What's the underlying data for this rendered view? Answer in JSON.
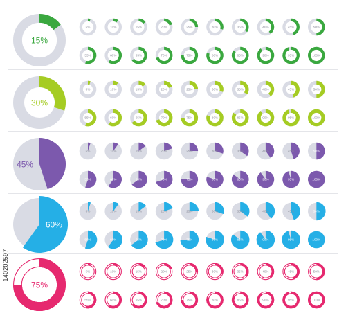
{
  "colors": {
    "track": "#d9dbe4",
    "divider": "#c9cbd3",
    "green": "#3aa83f",
    "lime": "#a5cc23",
    "purple": "#7c59ad",
    "blue": "#25afe6",
    "pink": "#e6296f"
  },
  "watermark_id": "140202597",
  "rows": [
    {
      "style": "ring-thin",
      "color_key": "green",
      "hero": {
        "value": 15,
        "label": "15%"
      },
      "small": [
        {
          "value": 5,
          "label": "5%"
        },
        {
          "value": 10,
          "label": "10%"
        },
        {
          "value": 15,
          "label": "15%"
        },
        {
          "value": 20,
          "label": "20%"
        },
        {
          "value": 25,
          "label": "25%"
        },
        {
          "value": 30,
          "label": "30%"
        },
        {
          "value": 35,
          "label": "35%"
        },
        {
          "value": 40,
          "label": "40%"
        },
        {
          "value": 45,
          "label": "45%"
        },
        {
          "value": 50,
          "label": "50%"
        },
        {
          "value": 55,
          "label": "55%"
        },
        {
          "value": 60,
          "label": "60%"
        },
        {
          "value": 65,
          "label": "65%"
        },
        {
          "value": 70,
          "label": "70%"
        },
        {
          "value": 75,
          "label": "75%"
        },
        {
          "value": 80,
          "label": "80%"
        },
        {
          "value": 85,
          "label": "85%"
        },
        {
          "value": 90,
          "label": "90%"
        },
        {
          "value": 95,
          "label": "95%"
        },
        {
          "value": 100,
          "label": "100%"
        }
      ]
    },
    {
      "style": "ring-thick",
      "color_key": "lime",
      "hero": {
        "value": 30,
        "label": "30%"
      },
      "small": [
        {
          "value": 5,
          "label": "5%"
        },
        {
          "value": 10,
          "label": "10%"
        },
        {
          "value": 15,
          "label": "15%"
        },
        {
          "value": 20,
          "label": "20%"
        },
        {
          "value": 25,
          "label": "25%"
        },
        {
          "value": 30,
          "label": "30%"
        },
        {
          "value": 35,
          "label": "35%"
        },
        {
          "value": 40,
          "label": "40%"
        },
        {
          "value": 45,
          "label": "45%"
        },
        {
          "value": 50,
          "label": "50%"
        },
        {
          "value": 55,
          "label": "55%"
        },
        {
          "value": 60,
          "label": "60%"
        },
        {
          "value": 65,
          "label": "65%"
        },
        {
          "value": 70,
          "label": "70%"
        },
        {
          "value": 75,
          "label": "75%"
        },
        {
          "value": 80,
          "label": "80%"
        },
        {
          "value": 85,
          "label": "85%"
        },
        {
          "value": 90,
          "label": "90%"
        },
        {
          "value": 95,
          "label": "95%"
        },
        {
          "value": 100,
          "label": "100%"
        }
      ]
    },
    {
      "style": "pie",
      "color_key": "purple",
      "hero": {
        "value": 45,
        "label": "45%"
      },
      "small": [
        {
          "value": 5,
          "label": "5%"
        },
        {
          "value": 10,
          "label": "10%"
        },
        {
          "value": 15,
          "label": "15%"
        },
        {
          "value": 20,
          "label": "20%"
        },
        {
          "value": 25,
          "label": "25%"
        },
        {
          "value": 30,
          "label": "30%"
        },
        {
          "value": 35,
          "label": "35%"
        },
        {
          "value": 40,
          "label": "40%"
        },
        {
          "value": 45,
          "label": "45%"
        },
        {
          "value": 50,
          "label": "50%"
        },
        {
          "value": 55,
          "label": "55%"
        },
        {
          "value": 60,
          "label": "60%"
        },
        {
          "value": 65,
          "label": "65%"
        },
        {
          "value": 70,
          "label": "70%"
        },
        {
          "value": 75,
          "label": "75%"
        },
        {
          "value": 80,
          "label": "80%"
        },
        {
          "value": 85,
          "label": "85%"
        },
        {
          "value": 90,
          "label": "90%"
        },
        {
          "value": 95,
          "label": "95%"
        },
        {
          "value": 100,
          "label": "100%"
        }
      ]
    },
    {
      "style": "pie-expanding",
      "color_key": "blue",
      "hero": {
        "value": 60,
        "label": "60%"
      },
      "small": [
        {
          "value": 5,
          "label": "5%"
        },
        {
          "value": 10,
          "label": "10%"
        },
        {
          "value": 15,
          "label": "15%"
        },
        {
          "value": 20,
          "label": "20%"
        },
        {
          "value": 25,
          "label": "25%"
        },
        {
          "value": 30,
          "label": "30%"
        },
        {
          "value": 35,
          "label": "35%"
        },
        {
          "value": 40,
          "label": "40%"
        },
        {
          "value": 45,
          "label": "45%"
        },
        {
          "value": 50,
          "label": "50%"
        },
        {
          "value": 55,
          "label": "55%"
        },
        {
          "value": 60,
          "label": "60%"
        },
        {
          "value": 65,
          "label": "65%"
        },
        {
          "value": 70,
          "label": "70%"
        },
        {
          "value": 75,
          "label": "75%"
        },
        {
          "value": 80,
          "label": "80%"
        },
        {
          "value": 85,
          "label": "85%"
        },
        {
          "value": 90,
          "label": "90%"
        },
        {
          "value": 95,
          "label": "95%"
        },
        {
          "value": 100,
          "label": "100%"
        }
      ]
    },
    {
      "style": "ring-outline",
      "color_key": "pink",
      "hero": {
        "value": 75,
        "label": "75%"
      },
      "small": [
        {
          "value": 5,
          "label": "5%"
        },
        {
          "value": 10,
          "label": "10%"
        },
        {
          "value": 15,
          "label": "15%"
        },
        {
          "value": 20,
          "label": "20%"
        },
        {
          "value": 25,
          "label": "25%"
        },
        {
          "value": 30,
          "label": "30%"
        },
        {
          "value": 35,
          "label": "35%"
        },
        {
          "value": 40,
          "label": "40%"
        },
        {
          "value": 45,
          "label": "45%"
        },
        {
          "value": 50,
          "label": "50%"
        },
        {
          "value": 55,
          "label": "55%"
        },
        {
          "value": 60,
          "label": "60%"
        },
        {
          "value": 65,
          "label": "65%"
        },
        {
          "value": 70,
          "label": "70%"
        },
        {
          "value": 75,
          "label": "75%"
        },
        {
          "value": 80,
          "label": "80%"
        },
        {
          "value": 85,
          "label": "85%"
        },
        {
          "value": 90,
          "label": "90%"
        },
        {
          "value": 95,
          "label": "95%"
        },
        {
          "value": 100,
          "label": "100%"
        }
      ]
    }
  ]
}
